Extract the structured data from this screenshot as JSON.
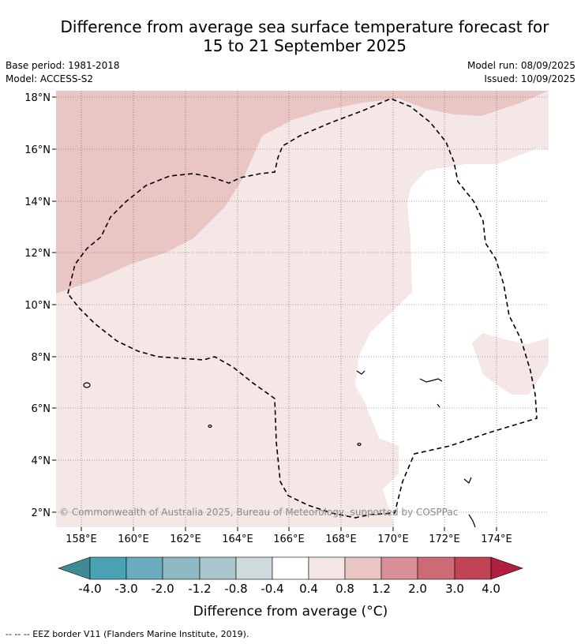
{
  "title_line1": "Difference from average sea surface temperature forecast for",
  "title_line2": "15 to 21 September 2025",
  "base_period": "Base period: 1981-2018",
  "model": "Model: ACCESS-S2",
  "model_run": "Model run: 08/09/2025",
  "issued": "Issued: 10/09/2025",
  "map": {
    "lon_ticks": [
      "158°E",
      "160°E",
      "162°E",
      "164°E",
      "166°E",
      "168°E",
      "170°E",
      "172°E",
      "174°E"
    ],
    "lat_ticks": [
      "18°N",
      "16°N",
      "14°N",
      "12°N",
      "10°N",
      "8°N",
      "6°N",
      "4°N",
      "2°N"
    ],
    "copyright": "© Commonwealth of Australia 2025, Bureau of Meteorology, supported by COSPPac",
    "colors": {
      "class_0.8_1.2": "#e9c6c3",
      "class_0.4_0.8": "#f4e7e6",
      "class_-0.4_0.4": "#ffffff"
    }
  },
  "colorbar": {
    "labels": [
      "-4.0",
      "-3.0",
      "-2.0",
      "-1.2",
      "-0.8",
      "-0.4",
      "0.4",
      "0.8",
      "1.2",
      "2.0",
      "3.0",
      "4.0"
    ],
    "colors": [
      "#3f8b94",
      "#4aa3b5",
      "#6aacbd",
      "#8db8c4",
      "#a8c5cb",
      "#d0d9db",
      "#ffffff",
      "#f4e7e6",
      "#e9c6c3",
      "#d98f98",
      "#cc6b76",
      "#c04454",
      "#b01f3e"
    ],
    "title": "Difference from average (°C)"
  },
  "footnote": "-- -- -- EEZ border V11 (Flanders Marine Institute, 2019)."
}
